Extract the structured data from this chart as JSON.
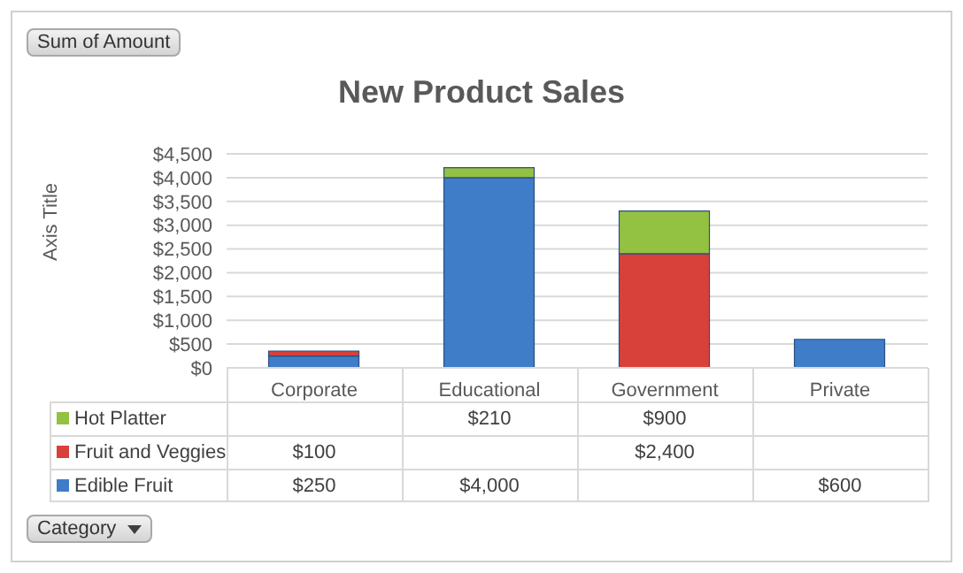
{
  "chart_data": {
    "type": "bar",
    "title": "New Product Sales",
    "ylabel": "Axis Title",
    "stacked": true,
    "categories": [
      "Corporate",
      "Educational",
      "Government",
      "Private"
    ],
    "series": [
      {
        "name": "Edible Fruit",
        "color": "#3f7dc8",
        "values": [
          250,
          4000,
          null,
          600
        ],
        "value_labels": [
          "$250",
          "$4,000",
          null,
          "$600"
        ]
      },
      {
        "name": "Fruit and Veggies",
        "color": "#d8403a",
        "values": [
          100,
          null,
          2400,
          null
        ],
        "value_labels": [
          "$100",
          null,
          "$2,400",
          null
        ]
      },
      {
        "name": "Hot Platter",
        "color": "#93c142",
        "values": [
          null,
          210,
          900,
          null
        ],
        "value_labels": [
          null,
          "$210",
          "$900",
          null
        ]
      }
    ],
    "ylim": [
      0,
      4500
    ],
    "yticks": [
      {
        "value": 0,
        "label": "$0"
      },
      {
        "value": 500,
        "label": "$500"
      },
      {
        "value": 1000,
        "label": "$1,000"
      },
      {
        "value": 1500,
        "label": "$1,500"
      },
      {
        "value": 2000,
        "label": "$2,000"
      },
      {
        "value": 2500,
        "label": "$2,500"
      },
      {
        "value": 3000,
        "label": "$3,000"
      },
      {
        "value": 3500,
        "label": "$3,500"
      },
      {
        "value": 4000,
        "label": "$4,000"
      },
      {
        "value": 4500,
        "label": "$4,500"
      }
    ],
    "grid": "y",
    "legend": "bottom left",
    "annotations": [
      "Sum of Amount",
      "Category"
    ]
  }
}
